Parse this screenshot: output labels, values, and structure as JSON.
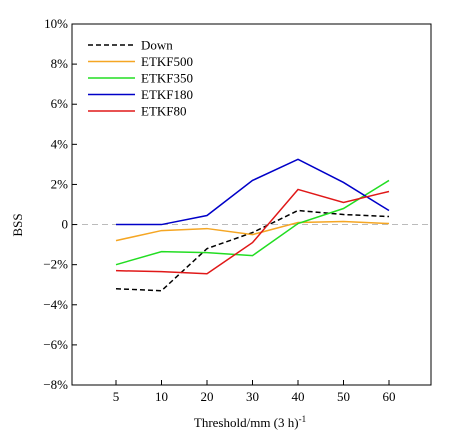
{
  "chart_data": {
    "type": "line",
    "title": "",
    "xlabel": "Threshold/mm (3 h)",
    "xlabel_exponent": "-1",
    "ylabel": "BSS",
    "categories": [
      "5",
      "10",
      "20",
      "30",
      "40",
      "50",
      "60"
    ],
    "yticks": [
      "10%",
      "8%",
      "6%",
      "4%",
      "2%",
      "0",
      "−2%",
      "−4%",
      "−6%",
      "−8%"
    ],
    "ylim": [
      -8,
      10
    ],
    "y_unit": "%",
    "grid": false,
    "zero_reference_line": true,
    "legend_position": "top-left",
    "series": [
      {
        "name": "Down",
        "color": "#000000",
        "dash": "dashed",
        "values": [
          -3.2,
          -3.3,
          -1.2,
          -0.4,
          0.7,
          0.5,
          0.4
        ]
      },
      {
        "name": "ETKF500",
        "color": "#f5a623",
        "dash": "solid",
        "values": [
          -0.8,
          -0.3,
          -0.2,
          -0.5,
          0.1,
          0.15,
          0.05
        ]
      },
      {
        "name": "ETKF350",
        "color": "#22dd22",
        "dash": "solid",
        "values": [
          -2.0,
          -1.35,
          -1.4,
          -1.55,
          0.05,
          0.8,
          2.2
        ]
      },
      {
        "name": "ETKF180",
        "color": "#0000c8",
        "dash": "solid",
        "values": [
          0.0,
          0.0,
          0.45,
          2.2,
          3.25,
          2.1,
          0.7
        ]
      },
      {
        "name": "ETKF80",
        "color": "#e01818",
        "dash": "solid",
        "values": [
          -2.3,
          -2.35,
          -2.45,
          -0.9,
          1.75,
          1.1,
          1.65
        ]
      }
    ]
  }
}
